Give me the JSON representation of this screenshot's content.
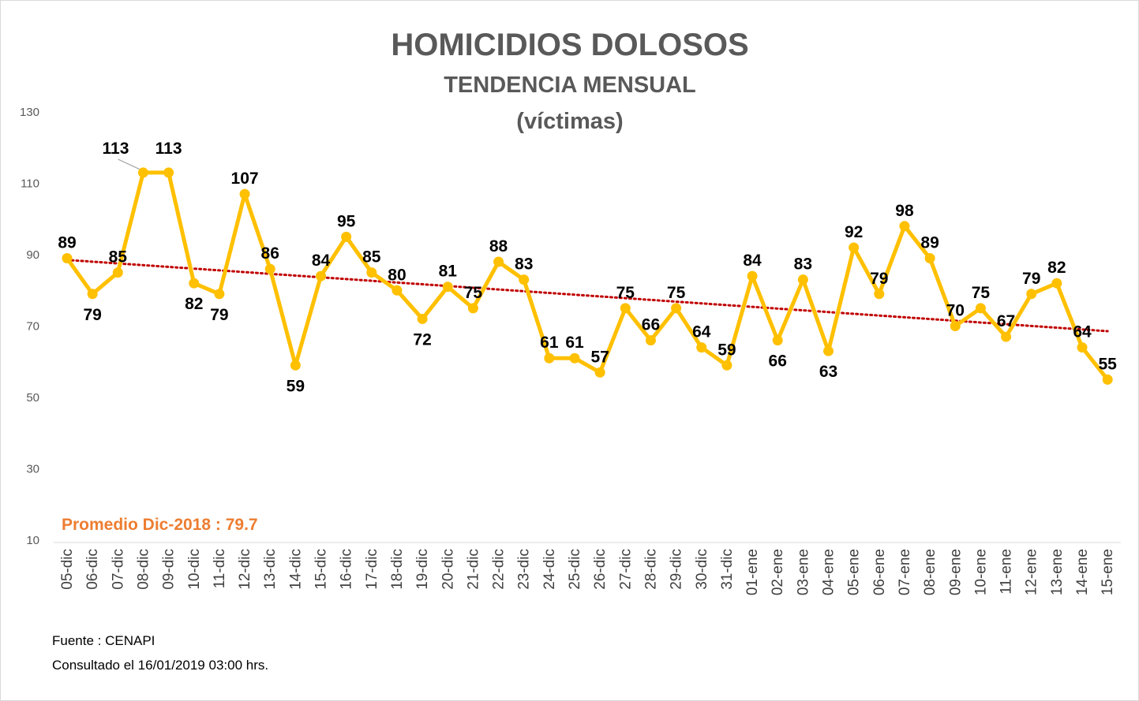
{
  "chart_data": {
    "type": "line",
    "title": "HOMICIDIOS DOLOSOS",
    "subtitle": "TENDENCIA MENSUAL",
    "subtitle2": "(víctimas)",
    "categories": [
      "05-dic",
      "06-dic",
      "07-dic",
      "08-dic",
      "09-dic",
      "10-dic",
      "11-dic",
      "12-dic",
      "13-dic",
      "14-dic",
      "15-dic",
      "16-dic",
      "17-dic",
      "18-dic",
      "19-dic",
      "20-dic",
      "21-dic",
      "22-dic",
      "23-dic",
      "24-dic",
      "25-dic",
      "26-dic",
      "27-dic",
      "28-dic",
      "29-dic",
      "30-dic",
      "31-dic",
      "01-ene",
      "02-ene",
      "03-ene",
      "04-ene",
      "05-ene",
      "06-ene",
      "07-ene",
      "08-ene",
      "09-ene",
      "10-ene",
      "11-ene",
      "12-ene",
      "13-ene",
      "14-ene",
      "15-ene"
    ],
    "values": [
      89,
      79,
      85,
      113,
      113,
      82,
      79,
      107,
      86,
      59,
      84,
      95,
      85,
      80,
      72,
      81,
      75,
      88,
      83,
      61,
      61,
      57,
      75,
      66,
      75,
      64,
      59,
      84,
      66,
      83,
      63,
      92,
      79,
      98,
      89,
      70,
      75,
      67,
      79,
      82,
      64,
      55
    ],
    "label_side": [
      "above",
      "below",
      "above",
      "above",
      "above",
      "below",
      "below",
      "above",
      "above",
      "below",
      "above",
      "above",
      "above",
      "above",
      "below",
      "above",
      "above",
      "above",
      "above",
      "above",
      "above",
      "above",
      "above",
      "above",
      "above",
      "above",
      "above",
      "above",
      "below",
      "above",
      "below",
      "above",
      "above",
      "above",
      "above",
      "above",
      "above",
      "above",
      "above",
      "above",
      "above",
      "above"
    ],
    "yticks": [
      130,
      110,
      90,
      70,
      50,
      30,
      10
    ],
    "ylim": [
      10,
      130
    ],
    "trendline": {
      "type": "linear",
      "style": "dotted",
      "color": "#c00000"
    },
    "line_color": "#ffc000",
    "marker_color": "#ffc000",
    "grid": false,
    "annotation": "Promedio Dic-2018 : 79.7",
    "annotation_color": "#ed7d31"
  },
  "footer": {
    "source": "Fuente : CENAPI",
    "consulted": "Consultado el 16/01/2019  03:00 hrs."
  }
}
